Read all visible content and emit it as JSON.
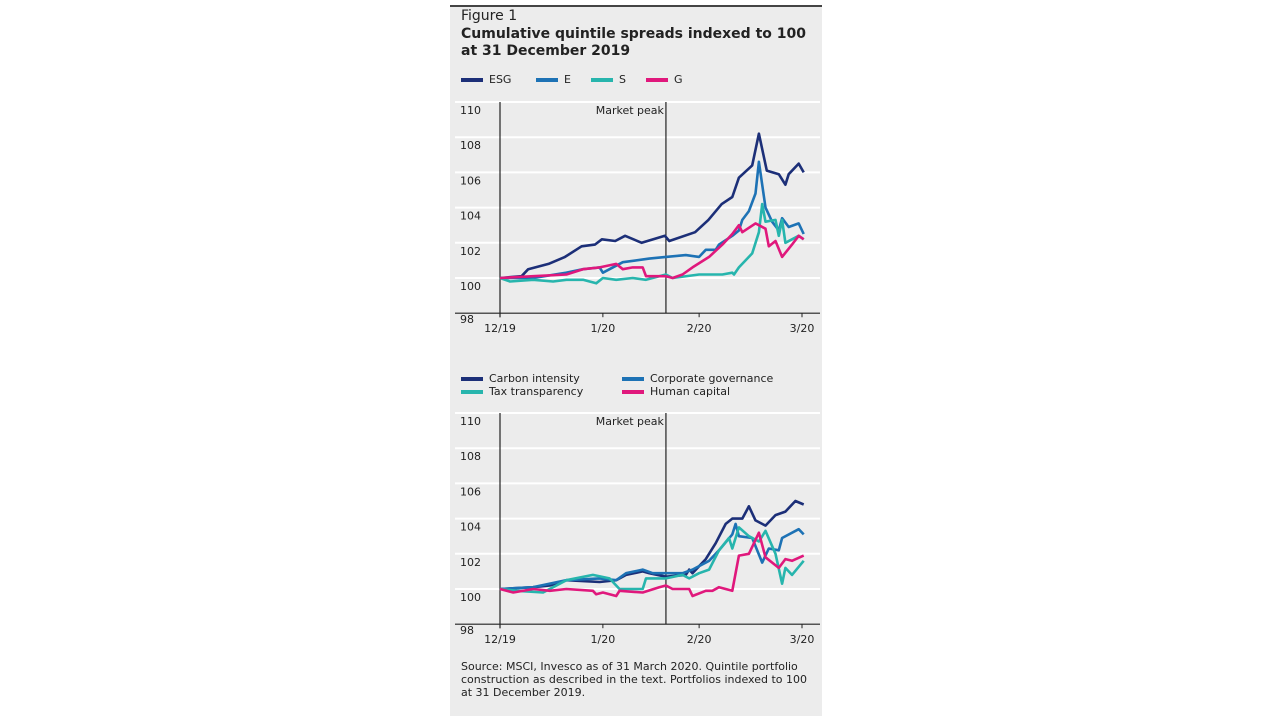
{
  "figure_label": "Figure 1",
  "title": "Cumulative quintile spreads indexed to 100 at 31 December 2019",
  "source": "Source: MSCI, Invesco as of 31 March 2020. Quintile portfolio construction as described in the text. Portfolios indexed to 100 at 31 December 2019.",
  "chart_data": [
    {
      "type": "line",
      "x_unit": "days since 31 Dec 2019",
      "xticks": [
        {
          "day": 0,
          "label": "12/19"
        },
        {
          "day": 31,
          "label": "1/20"
        },
        {
          "day": 60,
          "label": "2/20"
        },
        {
          "day": 91,
          "label": "3/20"
        }
      ],
      "yticks": [
        98,
        100,
        102,
        104,
        106,
        108,
        110
      ],
      "ylim": [
        98,
        110
      ],
      "xlim": [
        0,
        91.5
      ],
      "grid": true,
      "legend": "top",
      "annotation": {
        "label": "Market peak",
        "day": 50
      },
      "series": [
        {
          "name": "ESG",
          "color": "#1c2f78",
          "x": [
            0,
            6.5,
            8.5,
            14.6,
            19.6,
            24.6,
            28.6,
            30.7,
            34.7,
            37.7,
            42.7,
            49.7,
            51,
            58.8,
            62.8,
            66.8,
            70,
            72,
            76,
            78,
            80.4,
            84,
            86,
            87,
            90,
            91.5
          ],
          "y": [
            100,
            100.1,
            100.5,
            100.8,
            101.2,
            101.8,
            101.9,
            102.2,
            102.1,
            102.4,
            102,
            102.4,
            102.1,
            102.6,
            103.3,
            104.2,
            104.6,
            105.7,
            106.4,
            108.2,
            106.1,
            105.9,
            105.3,
            105.9,
            106.5,
            106
          ]
        },
        {
          "name": "E",
          "color": "#1d72b5",
          "x": [
            0,
            10,
            20,
            25,
            30,
            31,
            37,
            45,
            50,
            56,
            60,
            62,
            65,
            66,
            70,
            72,
            73,
            75,
            77,
            78,
            80,
            82,
            84,
            85,
            87,
            90,
            91.5
          ],
          "y": [
            100,
            100,
            100.3,
            100.5,
            100.6,
            100.3,
            100.9,
            101.1,
            101.2,
            101.3,
            101.2,
            101.6,
            101.6,
            101.9,
            102.4,
            102.7,
            103.3,
            103.8,
            104.8,
            106.6,
            104,
            103.2,
            102.7,
            103.4,
            102.9,
            103.1,
            102.5
          ]
        },
        {
          "name": "S",
          "color": "#27b5ad",
          "x": [
            0,
            3,
            10,
            16,
            20,
            25,
            29,
            31,
            35,
            40,
            44,
            50,
            52,
            60,
            67,
            70,
            70.5,
            72,
            76,
            78,
            79,
            80,
            83,
            84,
            85,
            86,
            90,
            91.5
          ],
          "y": [
            100,
            99.8,
            99.9,
            99.8,
            99.9,
            99.9,
            99.7,
            100,
            99.9,
            100,
            99.9,
            100.2,
            100,
            100.2,
            100.2,
            100.3,
            100.2,
            100.6,
            101.4,
            102.6,
            104.2,
            103.2,
            103.3,
            102.4,
            103.3,
            102,
            102.4,
            102.2
          ]
        },
        {
          "name": "G",
          "color": "#e0187c",
          "x": [
            0,
            10,
            20,
            25,
            30,
            35,
            37,
            40,
            43,
            44,
            50,
            52,
            55,
            58,
            63,
            67,
            70,
            72,
            73,
            77,
            80,
            81,
            83,
            85,
            88,
            90,
            91.5
          ],
          "y": [
            100,
            100.1,
            100.2,
            100.5,
            100.6,
            100.8,
            100.5,
            100.6,
            100.6,
            100.1,
            100.1,
            100,
            100.2,
            100.6,
            101.2,
            101.9,
            102.5,
            103,
            102.6,
            103.1,
            102.8,
            101.8,
            102.1,
            101.2,
            101.9,
            102.4,
            102.2
          ]
        }
      ]
    },
    {
      "type": "line",
      "x_unit": "days since 31 Dec 2019",
      "xticks": [
        {
          "day": 0,
          "label": "12/19"
        },
        {
          "day": 31,
          "label": "1/20"
        },
        {
          "day": 60,
          "label": "2/20"
        },
        {
          "day": 91,
          "label": "3/20"
        }
      ],
      "yticks": [
        98,
        100,
        102,
        104,
        106,
        108,
        110
      ],
      "ylim": [
        98,
        110
      ],
      "xlim": [
        0,
        91.5
      ],
      "grid": true,
      "legend": "top",
      "annotation": {
        "label": "Market peak",
        "day": 50
      },
      "series": [
        {
          "name": "Carbon intensity",
          "color": "#1c2f78",
          "x": [
            0,
            10,
            15,
            20,
            30,
            35,
            38,
            43,
            45,
            50,
            56,
            57,
            58,
            62,
            65,
            68,
            70,
            73,
            75,
            77,
            80,
            83,
            86,
            89,
            91.5
          ],
          "y": [
            100,
            100.1,
            100.2,
            100.5,
            100.4,
            100.5,
            100.8,
            101,
            100.9,
            100.7,
            100.8,
            101.1,
            100.9,
            101.7,
            102.6,
            103.7,
            104,
            104,
            104.7,
            103.9,
            103.6,
            104.2,
            104.4,
            105,
            104.8
          ]
        },
        {
          "name": "Corporate governance",
          "color": "#1d72b5",
          "x": [
            0,
            10,
            15,
            20,
            30,
            35,
            38,
            43,
            46,
            50,
            55,
            58,
            63,
            66,
            70,
            71,
            72,
            76,
            79,
            81,
            84,
            85,
            90,
            91.5
          ],
          "y": [
            100,
            100.1,
            100.3,
            100.5,
            100.6,
            100.5,
            100.9,
            101.1,
            100.9,
            100.9,
            100.9,
            101.1,
            101.6,
            102.2,
            103.1,
            103.7,
            103,
            102.9,
            101.5,
            102.3,
            102.2,
            102.9,
            103.4,
            103.1
          ]
        },
        {
          "name": "Tax transparency",
          "color": "#27b5ad",
          "x": [
            0,
            5,
            13,
            20,
            28,
            33,
            36,
            43,
            44,
            50,
            55,
            57,
            60,
            63,
            66,
            69,
            70,
            72,
            75,
            78,
            80,
            83,
            85,
            86,
            88,
            91.5
          ],
          "y": [
            100,
            99.9,
            99.8,
            100.5,
            100.8,
            100.6,
            100,
            100,
            100.6,
            100.6,
            100.8,
            100.6,
            100.9,
            101.1,
            102.2,
            102.9,
            102.3,
            103.5,
            103,
            102.7,
            103.3,
            102,
            100.3,
            101.2,
            100.8,
            101.6
          ]
        },
        {
          "name": "Human capital",
          "color": "#e0187c",
          "x": [
            0,
            4,
            10,
            15,
            20,
            28,
            29,
            31,
            35,
            36,
            43,
            48,
            50,
            52,
            57,
            58,
            62,
            64,
            66,
            70,
            72,
            75,
            78,
            80,
            84,
            86,
            88,
            91.5
          ],
          "y": [
            100,
            99.8,
            100,
            99.9,
            100,
            99.9,
            99.7,
            99.8,
            99.6,
            99.9,
            99.8,
            100.1,
            100.2,
            100,
            100,
            99.6,
            99.9,
            99.9,
            100.1,
            99.9,
            101.9,
            102,
            103.2,
            101.8,
            101.2,
            101.7,
            101.6,
            101.9
          ]
        }
      ]
    }
  ]
}
